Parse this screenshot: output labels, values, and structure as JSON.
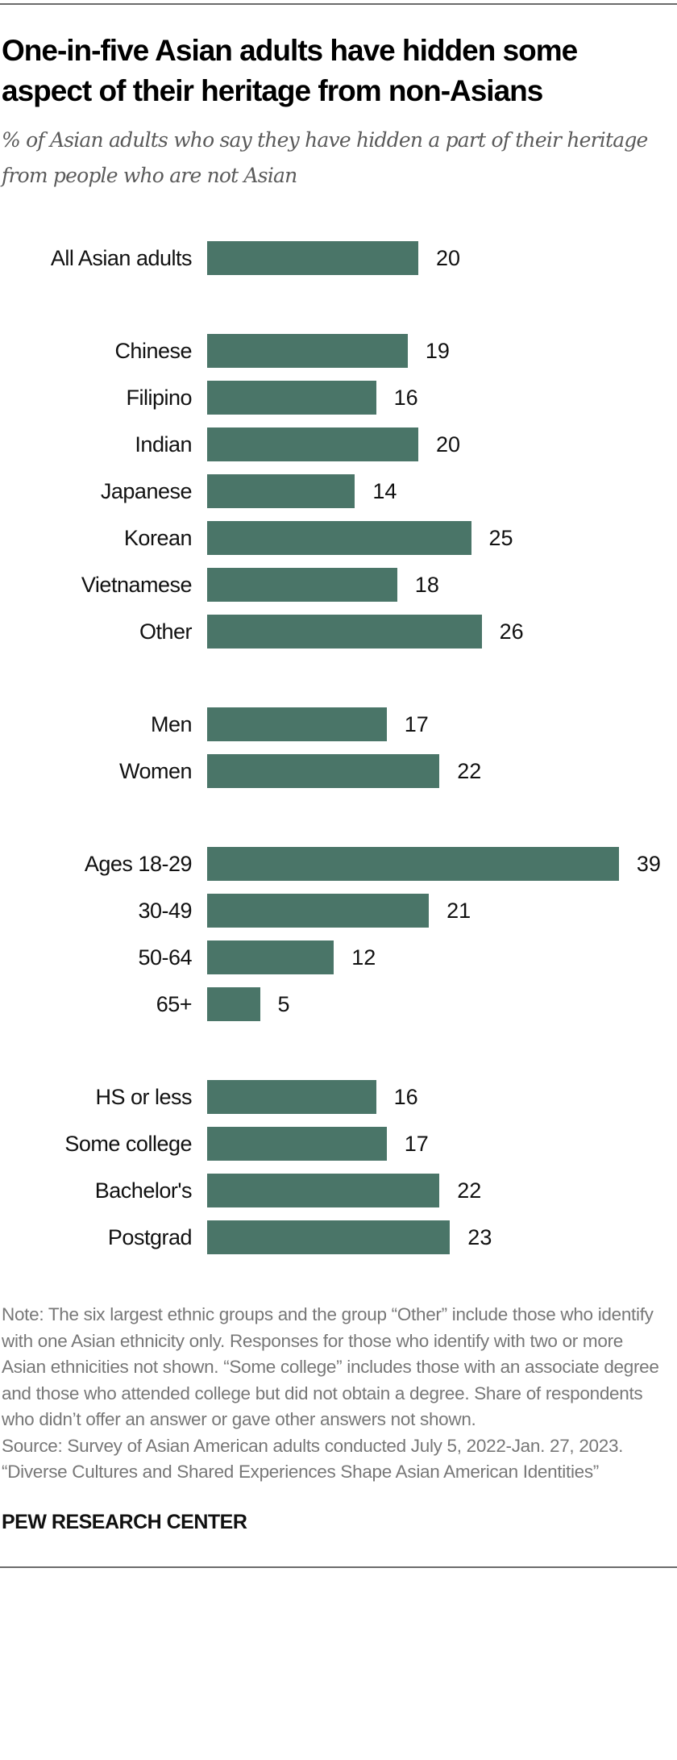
{
  "chart_data": {
    "type": "bar",
    "orientation": "horizontal",
    "title": "One-in-five Asian adults have hidden some aspect of their heritage from non-Asians",
    "subtitle": "% of Asian adults who say they have hidden a part of their heritage from people who are not Asian",
    "groups": [
      {
        "categories": [
          "All Asian adults"
        ],
        "values": [
          20
        ]
      },
      {
        "categories": [
          "Chinese",
          "Filipino",
          "Indian",
          "Japanese",
          "Korean",
          "Vietnamese",
          "Other"
        ],
        "values": [
          19,
          16,
          20,
          14,
          25,
          18,
          26
        ]
      },
      {
        "categories": [
          "Men",
          "Women"
        ],
        "values": [
          17,
          22
        ]
      },
      {
        "categories": [
          "Ages 18-29",
          "30-49",
          "50-64",
          "65+"
        ],
        "values": [
          39,
          21,
          12,
          5
        ]
      },
      {
        "categories": [
          "HS or less",
          "Some college",
          "Bachelor's",
          "Postgrad"
        ],
        "values": [
          16,
          17,
          22,
          23
        ]
      }
    ],
    "xlim": [
      0,
      40
    ],
    "grid": false,
    "bar_color": "#4a7568"
  },
  "notes": {
    "note": "Note: The six largest ethnic groups and the group “Other” include those who identify with one Asian ethnicity only. Responses for those who identify with two or more Asian ethnicities not shown. “Some college” includes those with an associate degree and those who attended college but did not obtain a degree. Share of respondents who didn’t offer an answer or gave other answers not shown.",
    "source": "Source: Survey of Asian American adults conducted July 5, 2022-Jan. 27, 2023.",
    "report": "“Diverse Cultures and Shared Experiences Shape Asian American Identities”"
  },
  "brand": "PEW RESEARCH CENTER"
}
